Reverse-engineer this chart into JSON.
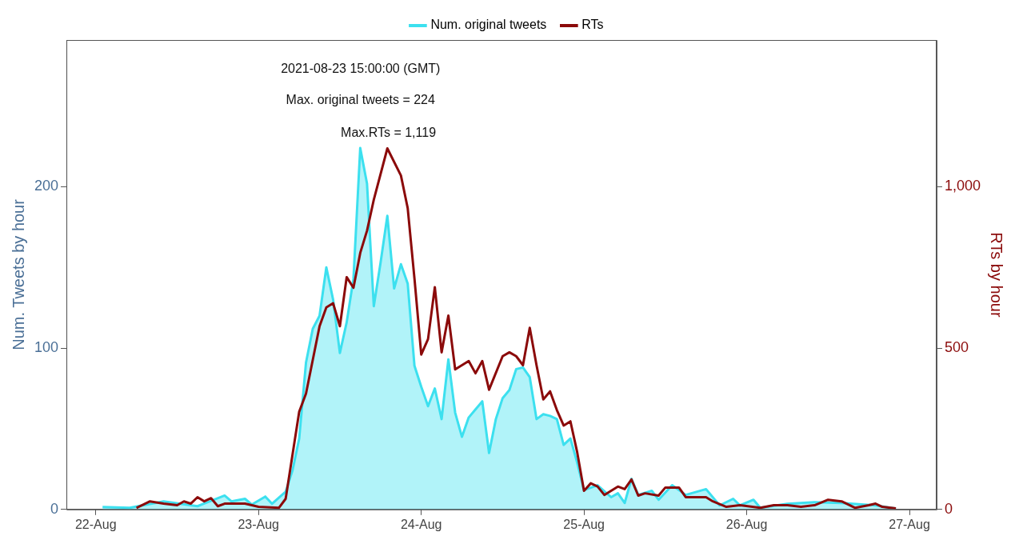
{
  "chart_data": {
    "type": "line",
    "annotations": [
      "2021-08-23 15:00:00 (GMT)",
      "Max. original tweets = 224",
      "Max.RTs = 1,119"
    ],
    "ylabel": "Num. Tweets by hour",
    "y2label": "RTs by hour",
    "series": [
      {
        "name": "Num. original tweets",
        "type": "area",
        "color": "#3ce0ef",
        "axis": "y",
        "x": [
          "2021-08-22T01:00",
          "2021-08-22T05:00",
          "2021-08-22T10:00",
          "2021-08-22T15:00",
          "2021-08-22T19:00",
          "2021-08-22T20:00",
          "2021-08-22T22:00",
          "2021-08-22T23:00",
          "2021-08-23T01:00",
          "2021-08-23T02:00",
          "2021-08-23T04:00",
          "2021-08-23T05:00",
          "2021-08-23T06:00",
          "2021-08-23T07:00",
          "2021-08-23T08:00",
          "2021-08-23T09:00",
          "2021-08-23T10:00",
          "2021-08-23T11:00",
          "2021-08-23T12:00",
          "2021-08-23T13:00",
          "2021-08-23T14:00",
          "2021-08-23T15:00",
          "2021-08-23T16:00",
          "2021-08-23T17:00",
          "2021-08-23T18:00",
          "2021-08-23T19:00",
          "2021-08-23T20:00",
          "2021-08-23T21:00",
          "2021-08-23T22:00",
          "2021-08-23T23:00",
          "2021-08-24T00:00",
          "2021-08-24T01:00",
          "2021-08-24T02:00",
          "2021-08-24T03:00",
          "2021-08-24T04:00",
          "2021-08-24T05:00",
          "2021-08-24T06:00",
          "2021-08-24T07:00",
          "2021-08-24T08:00",
          "2021-08-24T09:00",
          "2021-08-24T10:00",
          "2021-08-24T11:00",
          "2021-08-24T12:00",
          "2021-08-24T13:00",
          "2021-08-24T14:00",
          "2021-08-24T15:00",
          "2021-08-24T16:00",
          "2021-08-24T17:00",
          "2021-08-24T18:00",
          "2021-08-24T19:00",
          "2021-08-24T20:00",
          "2021-08-24T21:00",
          "2021-08-24T22:00",
          "2021-08-24T23:00",
          "2021-08-25T00:00",
          "2021-08-25T02:00",
          "2021-08-25T04:00",
          "2021-08-25T05:00",
          "2021-08-25T06:00",
          "2021-08-25T07:00",
          "2021-08-25T08:00",
          "2021-08-25T10:00",
          "2021-08-25T11:00",
          "2021-08-25T13:00",
          "2021-08-25T15:00",
          "2021-08-25T18:00",
          "2021-08-25T20:00",
          "2021-08-25T22:00",
          "2021-08-25T23:00",
          "2021-08-26T01:00",
          "2021-08-26T02:00",
          "2021-08-26T06:00",
          "2021-08-26T10:00",
          "2021-08-26T14:00",
          "2021-08-26T19:00",
          "2021-08-26T22:00"
        ],
        "values": [
          1.5,
          1,
          5,
          2,
          8.6,
          5,
          6.6,
          3,
          8,
          3.5,
          11,
          24,
          44,
          91,
          112,
          120,
          150,
          130,
          97,
          116,
          143,
          224,
          202,
          126,
          153,
          182,
          137,
          152,
          140,
          89,
          76,
          64,
          75,
          56,
          93,
          60,
          45,
          57,
          62,
          67,
          35,
          56,
          69,
          74,
          87,
          88,
          82,
          56,
          59,
          58,
          56,
          40,
          44,
          29,
          12,
          15,
          7.6,
          10,
          4,
          19,
          9,
          11.6,
          6,
          15,
          9,
          12.6,
          2.5,
          6.6,
          2.5,
          6,
          1,
          3.5,
          4.5,
          4,
          2.5,
          0.5
        ]
      },
      {
        "name": "RTs",
        "color": "#8b0a0a",
        "axis": "y2",
        "x": [
          "2021-08-22T06:00",
          "2021-08-22T08:00",
          "2021-08-22T10:00",
          "2021-08-22T12:00",
          "2021-08-22T13:00",
          "2021-08-22T14:00",
          "2021-08-22T15:00",
          "2021-08-22T16:00",
          "2021-08-22T17:00",
          "2021-08-22T18:00",
          "2021-08-22T19:00",
          "2021-08-22T22:00",
          "2021-08-23T00:00",
          "2021-08-23T03:00",
          "2021-08-23T04:00",
          "2021-08-23T06:00",
          "2021-08-23T07:00",
          "2021-08-23T09:00",
          "2021-08-23T10:00",
          "2021-08-23T11:00",
          "2021-08-23T12:00",
          "2021-08-23T13:00",
          "2021-08-23T14:00",
          "2021-08-23T15:00",
          "2021-08-23T16:00",
          "2021-08-23T17:00",
          "2021-08-23T19:00",
          "2021-08-23T21:00",
          "2021-08-23T22:00",
          "2021-08-23T23:00",
          "2021-08-24T00:00",
          "2021-08-24T01:00",
          "2021-08-24T02:00",
          "2021-08-24T03:00",
          "2021-08-24T04:00",
          "2021-08-24T05:00",
          "2021-08-24T07:00",
          "2021-08-24T08:00",
          "2021-08-24T09:00",
          "2021-08-24T10:00",
          "2021-08-24T12:00",
          "2021-08-24T13:00",
          "2021-08-24T14:00",
          "2021-08-24T15:00",
          "2021-08-24T16:00",
          "2021-08-24T17:00",
          "2021-08-24T18:00",
          "2021-08-24T19:00",
          "2021-08-24T20:00",
          "2021-08-24T21:00",
          "2021-08-24T22:00",
          "2021-08-24T23:00",
          "2021-08-25T00:00",
          "2021-08-25T01:00",
          "2021-08-25T02:00",
          "2021-08-25T03:00",
          "2021-08-25T05:00",
          "2021-08-25T06:00",
          "2021-08-25T07:00",
          "2021-08-25T08:00",
          "2021-08-25T09:00",
          "2021-08-25T11:00",
          "2021-08-25T12:00",
          "2021-08-25T14:00",
          "2021-08-25T15:00",
          "2021-08-25T18:00",
          "2021-08-25T19:00",
          "2021-08-25T21:00",
          "2021-08-25T23:00",
          "2021-08-26T02:00",
          "2021-08-26T04:00",
          "2021-08-26T06:00",
          "2021-08-26T08:00",
          "2021-08-26T10:00",
          "2021-08-26T12:00",
          "2021-08-26T14:00",
          "2021-08-26T16:00",
          "2021-08-26T18:00",
          "2021-08-26T19:00",
          "2021-08-26T20:00",
          "2021-08-26T22:00"
        ],
        "values": [
          5,
          25,
          18,
          13,
          25,
          18,
          38,
          25,
          35,
          10,
          18,
          18,
          8,
          5,
          33,
          303,
          359,
          568,
          626,
          639,
          568,
          720,
          687,
          795,
          864,
          960,
          1119,
          1035,
          934,
          715,
          480,
          528,
          689,
          487,
          601,
          434,
          460,
          422,
          460,
          371,
          475,
          487,
          475,
          447,
          563,
          447,
          341,
          366,
          308,
          260,
          273,
          177,
          58,
          81,
          71,
          45,
          71,
          63,
          93,
          43,
          50,
          43,
          68,
          68,
          38,
          38,
          25,
          8,
          13,
          5,
          13,
          13,
          8,
          13,
          30,
          25,
          5,
          13,
          18,
          8,
          3
        ]
      }
    ],
    "xlim": [
      "2021-08-21T19:40",
      "2021-08-27T04:00"
    ],
    "xticks": [
      {
        "value": "2021-08-22",
        "label": "22-Aug"
      },
      {
        "value": "2021-08-23",
        "label": "23-Aug"
      },
      {
        "value": "2021-08-24",
        "label": "24-Aug"
      },
      {
        "value": "2021-08-25",
        "label": "25-Aug"
      },
      {
        "value": "2021-08-26",
        "label": "26-Aug"
      },
      {
        "value": "2021-08-27",
        "label": "27-Aug"
      }
    ],
    "ylim": [
      0,
      291
    ],
    "yticks": [
      0,
      100,
      200
    ],
    "y2lim": [
      0,
      1455
    ],
    "y2ticks": [
      0,
      500,
      {
        "value": 1000,
        "label": "1,000"
      }
    ],
    "grid": false,
    "legend": "top",
    "marker": "none",
    "line_style": "solid"
  }
}
